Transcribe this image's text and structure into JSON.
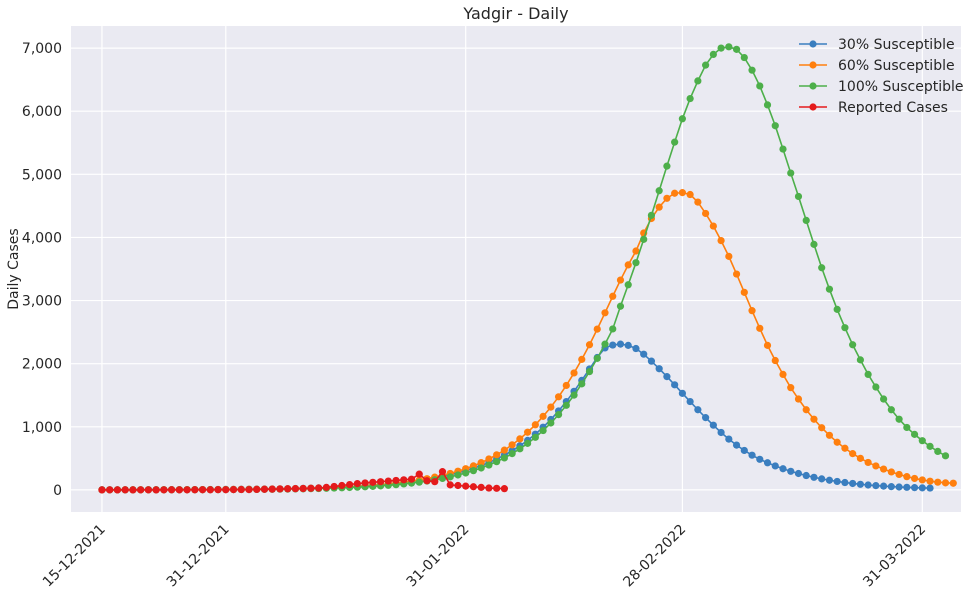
{
  "chart_data": {
    "type": "line",
    "title": "Yadgir - Daily",
    "xlabel": "",
    "ylabel": "Daily Cases",
    "ylim": [
      -350,
      7350
    ],
    "xlim": [
      "2021-12-11",
      "2022-04-05"
    ],
    "grid": true,
    "legend_position": "top-right",
    "background_color": "#eaeaf2",
    "y_ticks": [
      {
        "value": 0,
        "label": "0"
      },
      {
        "value": 1000,
        "label": "1,000"
      },
      {
        "value": 2000,
        "label": "2,000"
      },
      {
        "value": 3000,
        "label": "3,000"
      },
      {
        "value": 4000,
        "label": "4,000"
      },
      {
        "value": 5000,
        "label": "5,000"
      },
      {
        "value": 6000,
        "label": "6,000"
      },
      {
        "value": 7000,
        "label": "7,000"
      }
    ],
    "x_ticks": [
      {
        "value": "2021-12-15",
        "label": "15-12-2021"
      },
      {
        "value": "2021-12-31",
        "label": "31-12-2021"
      },
      {
        "value": "2022-01-31",
        "label": "31-01-2022"
      },
      {
        "value": "2022-02-28",
        "label": "28-02-2022"
      },
      {
        "value": "2022-03-31",
        "label": "31-03-2022"
      }
    ],
    "series": [
      {
        "name": "30% Susceptible",
        "color": "#3a7ebf",
        "start": "2021-12-15",
        "values": [
          2,
          2,
          2,
          2,
          2,
          3,
          3,
          3,
          3,
          4,
          4,
          4,
          5,
          5,
          6,
          7,
          8,
          9,
          10,
          11,
          12,
          14,
          15,
          17,
          19,
          22,
          25,
          28,
          32,
          36,
          40,
          45,
          51,
          58,
          65,
          73,
          83,
          93,
          105,
          118,
          133,
          150,
          169,
          190,
          214,
          241,
          271,
          306,
          344,
          387,
          435,
          490,
          552,
          621,
          698,
          785,
          883,
          993,
          1115,
          1251,
          1400,
          1562,
          1735,
          1916,
          2098,
          2250,
          2295,
          2310,
          2290,
          2240,
          2150,
          2040,
          1920,
          1795,
          1665,
          1530,
          1400,
          1270,
          1145,
          1025,
          910,
          805,
          710,
          625,
          550,
          485,
          430,
          380,
          335,
          295,
          260,
          228,
          200,
          175,
          153,
          134,
          117,
          102,
          89,
          78,
          68,
          60,
          52,
          46,
          41,
          36,
          32,
          29
        ]
      },
      {
        "name": "60% Susceptible",
        "color": "#ff7f0e",
        "start": "2021-12-15",
        "values": [
          1,
          1,
          1,
          2,
          2,
          2,
          2,
          2,
          3,
          3,
          3,
          4,
          4,
          5,
          5,
          6,
          7,
          8,
          9,
          10,
          11,
          13,
          14,
          16,
          18,
          21,
          23,
          27,
          30,
          34,
          39,
          44,
          50,
          57,
          64,
          73,
          83,
          94,
          107,
          121,
          138,
          157,
          178,
          202,
          230,
          261,
          296,
          336,
          381,
          432,
          490,
          556,
          630,
          714,
          808,
          914,
          1032,
          1165,
          1312,
          1475,
          1655,
          1853,
          2068,
          2300,
          2548,
          2806,
          3068,
          3325,
          3565,
          3785,
          4070,
          4300,
          4480,
          4620,
          4700,
          4710,
          4680,
          4560,
          4380,
          4180,
          3950,
          3700,
          3420,
          3130,
          2840,
          2560,
          2290,
          2050,
          1830,
          1620,
          1440,
          1270,
          1120,
          985,
          865,
          755,
          660,
          575,
          500,
          435,
          380,
          330,
          285,
          245,
          210,
          182,
          158,
          138,
          122,
          112,
          106
        ]
      },
      {
        "name": "100% Susceptible",
        "color": "#4daf4a",
        "start": "2021-12-15",
        "values": [
          1,
          1,
          1,
          1,
          1,
          1,
          2,
          2,
          2,
          2,
          2,
          3,
          3,
          3,
          4,
          4,
          5,
          5,
          6,
          7,
          8,
          9,
          10,
          11,
          13,
          15,
          17,
          19,
          22,
          25,
          29,
          33,
          38,
          43,
          49,
          56,
          64,
          73,
          83,
          95,
          108,
          123,
          140,
          160,
          182,
          207,
          236,
          268,
          305,
          347,
          394,
          447,
          507,
          575,
          651,
          737,
          833,
          940,
          1060,
          1193,
          1340,
          1502,
          1680,
          1874,
          2084,
          2310,
          2550,
          2910,
          3250,
          3600,
          3970,
          4350,
          4740,
          5130,
          5510,
          5880,
          6200,
          6480,
          6730,
          6900,
          7000,
          7020,
          6980,
          6850,
          6650,
          6400,
          6100,
          5770,
          5400,
          5020,
          4650,
          4270,
          3890,
          3520,
          3180,
          2860,
          2570,
          2300,
          2060,
          1830,
          1630,
          1440,
          1270,
          1120,
          990,
          880,
          780,
          690,
          610,
          540
        ]
      },
      {
        "name": "Reported Cases",
        "color": "#e41a1c",
        "start": "2021-12-15",
        "values": [
          0,
          1,
          0,
          1,
          0,
          1,
          1,
          0,
          1,
          2,
          1,
          1,
          2,
          3,
          2,
          4,
          3,
          5,
          6,
          5,
          8,
          10,
          12,
          15,
          18,
          20,
          22,
          25,
          30,
          40,
          55,
          70,
          85,
          100,
          110,
          120,
          130,
          140,
          150,
          160,
          170,
          250,
          145,
          130,
          290,
          80,
          70,
          60,
          50,
          40,
          30,
          25,
          20
        ]
      }
    ]
  }
}
